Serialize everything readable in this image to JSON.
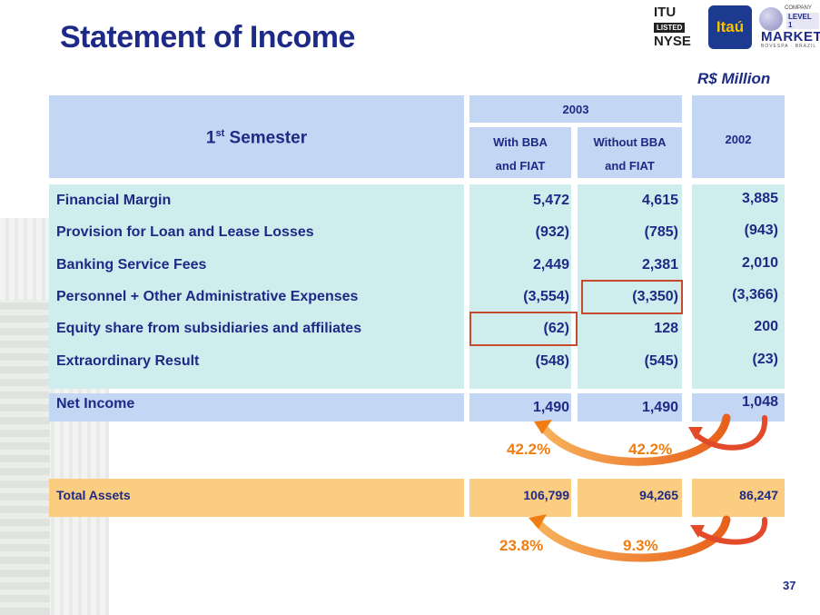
{
  "title": "Statement of Income",
  "logos": {
    "itu_line1": "ITU",
    "itu_listed": "LISTED",
    "itu_line2": "NYSE",
    "itau": "Itaú",
    "company": "COMPANY",
    "level": "LEVEL 1",
    "market": "MARKET",
    "bovespa": "BOVESPA · BRAZIL"
  },
  "unit": "R$ Million",
  "header": {
    "semester_main": "1",
    "semester_sup": "st",
    "semester_rest": " Semester",
    "year_2003": "2003",
    "with_bba_line1": "With BBA",
    "with_bba_line2": "and FIAT",
    "without_bba_line1": "Without BBA",
    "without_bba_line2": "and FIAT",
    "year_2002": "2002"
  },
  "rows": [
    {
      "label": "Financial Margin",
      "with_bba": "5,472",
      "without_bba": "4,615",
      "y2002": "3,885"
    },
    {
      "label": "Provision for Loan and Lease Losses",
      "with_bba": "(932)",
      "without_bba": "(785)",
      "y2002": "(943)"
    },
    {
      "label": "Banking Service Fees",
      "with_bba": "2,449",
      "without_bba": "2,381",
      "y2002": "2,010"
    },
    {
      "label": "Personnel + Other Administrative Expenses",
      "with_bba": "(3,554)",
      "without_bba": "(3,350)",
      "y2002": "(3,366)"
    },
    {
      "label": "Equity share from subsidiaries and affiliates",
      "with_bba": "(62)",
      "without_bba": "128",
      "y2002": "200"
    },
    {
      "label": "Extraordinary Result",
      "with_bba": "(548)",
      "without_bba": "(545)",
      "y2002": "(23)"
    }
  ],
  "net_income": {
    "label": "Net Income",
    "with_bba": "1,490",
    "without_bba": "1,490",
    "y2002": "1,048"
  },
  "net_income_growth": {
    "with_bba": "42.2%",
    "without_bba": "42.2%"
  },
  "total_assets": {
    "label": "Total Assets",
    "with_bba": "106,799",
    "without_bba": "94,265",
    "y2002": "86,247"
  },
  "total_assets_growth": {
    "with_bba": "23.8%",
    "without_bba": "9.3%"
  },
  "page_number": "37",
  "colors": {
    "title": "#1d2a86",
    "header_fill": "#c3d6f3",
    "body_fill": "#cfeded",
    "assets_fill": "#fbcd81",
    "highlight_border": "#c64a2e",
    "arrow": "#f07d12"
  }
}
